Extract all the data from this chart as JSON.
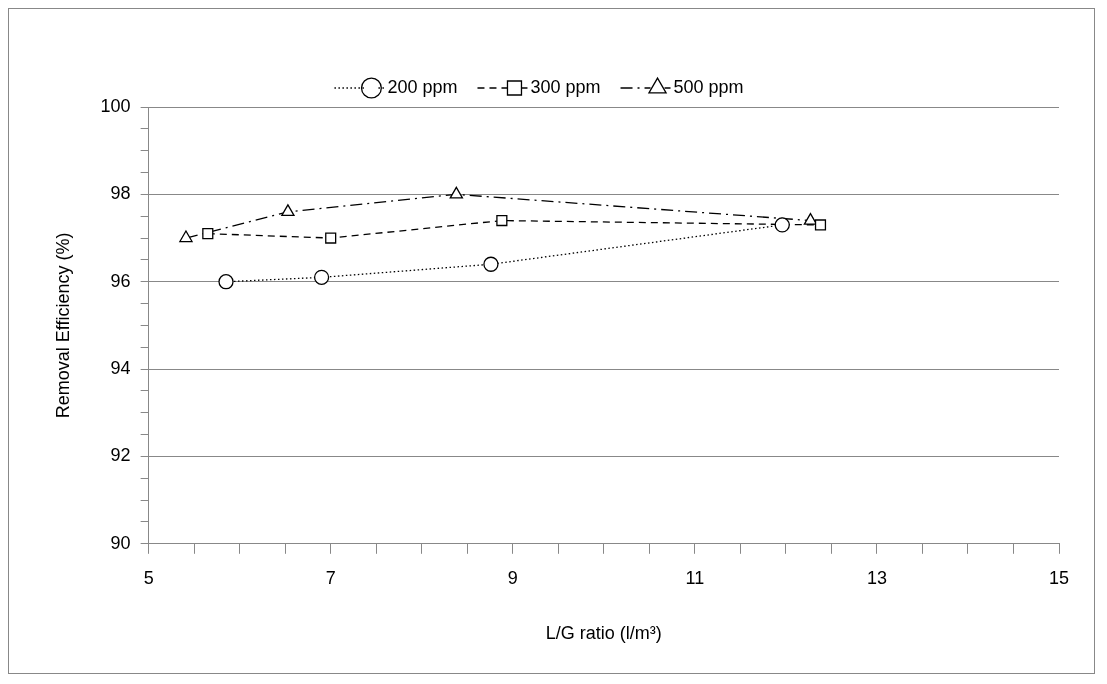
{
  "chart_data": {
    "type": "line",
    "xlabel": "L/G ratio (l/m³)",
    "ylabel": "Removal Efficiency (%)",
    "xlim": [
      5,
      15
    ],
    "xticks": [
      5,
      {
        "value": 5.5,
        "label": null
      },
      {
        "value": 6,
        "label": null
      },
      {
        "value": 6.5,
        "label": null
      },
      7,
      {
        "value": 7.5,
        "label": null
      },
      {
        "value": 8,
        "label": null
      },
      {
        "value": 8.5,
        "label": null
      },
      9,
      {
        "value": 9.5,
        "label": null
      },
      {
        "value": 10,
        "label": null
      },
      {
        "value": 10.5,
        "label": null
      },
      11,
      {
        "value": 11.5,
        "label": null
      },
      {
        "value": 12,
        "label": null
      },
      {
        "value": 12.5,
        "label": null
      },
      13,
      {
        "value": 13.5,
        "label": null
      },
      {
        "value": 14,
        "label": null
      },
      {
        "value": 14.5,
        "label": null
      },
      15
    ],
    "ylim": [
      90,
      100
    ],
    "yticks": [
      90,
      {
        "value": 90.5,
        "label": null
      },
      {
        "value": 91,
        "label": null
      },
      {
        "value": 91.5,
        "label": null
      },
      92,
      {
        "value": 92.5,
        "label": null
      },
      {
        "value": 93,
        "label": null
      },
      {
        "value": 93.5,
        "label": null
      },
      94,
      {
        "value": 94.5,
        "label": null
      },
      {
        "value": 95,
        "label": null
      },
      {
        "value": 95.5,
        "label": null
      },
      96,
      {
        "value": 96.5,
        "label": null
      },
      {
        "value": 97,
        "label": null
      },
      {
        "value": 97.5,
        "label": null
      },
      98,
      {
        "value": 98.5,
        "label": null
      },
      {
        "value": 99,
        "label": null
      },
      {
        "value": 99.5,
        "label": null
      },
      100
    ],
    "grid": "y",
    "legend": "top",
    "series": [
      {
        "name": "200 ppm",
        "color": "#000000",
        "marker": "circle",
        "line_style": "dotted",
        "x": [
          5.85,
          6.9,
          8.76,
          11.96
        ],
        "values": [
          96.0,
          96.1,
          96.4,
          97.3
        ]
      },
      {
        "name": "300 ppm",
        "color": "#000000",
        "marker": "square",
        "line_style": "dashed",
        "x": [
          5.65,
          7.0,
          8.88,
          12.38
        ],
        "values": [
          97.1,
          97.0,
          97.4,
          97.3
        ]
      },
      {
        "name": "500 ppm",
        "color": "#000000",
        "marker": "triangle",
        "line_style": "dashdot",
        "x": [
          5.41,
          6.53,
          8.38,
          12.27
        ],
        "values": [
          97.0,
          97.6,
          98.0,
          97.4
        ]
      }
    ]
  }
}
